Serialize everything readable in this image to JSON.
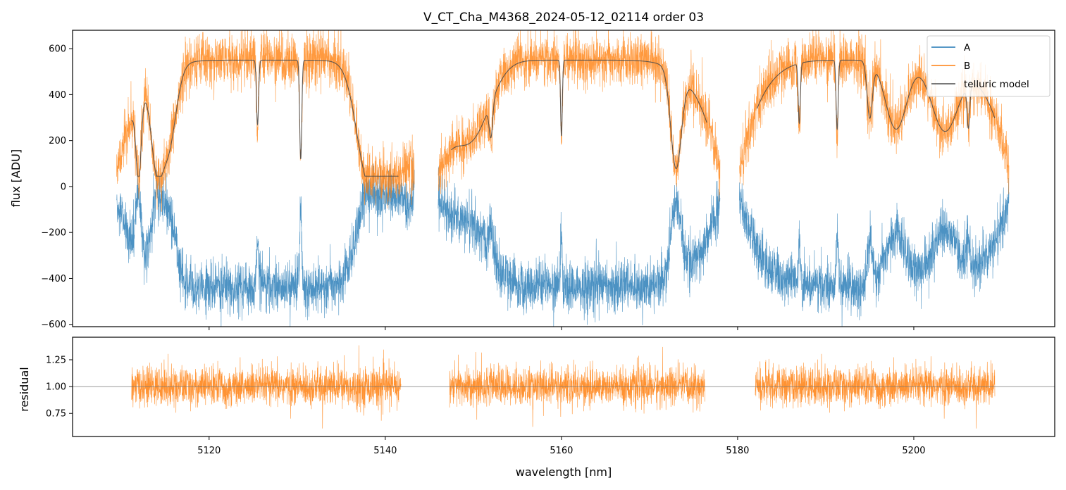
{
  "chart_data": [
    {
      "type": "line",
      "title": "V_CT_Cha_M4368_2024-05-12_02114  order 03",
      "xlabel": "",
      "ylabel": "flux [ADU]",
      "xlim": [
        5104.5,
        5216
      ],
      "ylim": [
        -610,
        680
      ],
      "yticks": [
        -600,
        -400,
        -200,
        0,
        200,
        400,
        600
      ],
      "ytick_labels": [
        "−600",
        "−400",
        "−200",
        "0",
        "200",
        "400",
        "600"
      ],
      "xticks": [
        5120,
        5140,
        5160,
        5180,
        5200
      ],
      "legend": {
        "placement": "top-right",
        "entries": [
          "A",
          "B",
          "telluric model"
        ]
      },
      "segments": [
        [
          5109.5,
          5143.3
        ],
        [
          5146.0,
          5178.0
        ],
        [
          5180.2,
          5210.8
        ]
      ],
      "series": [
        {
          "name": "A",
          "color": "#1f77b4",
          "description": "Nod position A: continuum near -420 ADU inside telluric-free windows, rising to ~-50 ADU in deep absorption bands",
          "continuum": -420,
          "noise": 55
        },
        {
          "name": "B",
          "color": "#ff7f0e",
          "description": "Nod position B: mirror of A, continuum near +540 ADU",
          "noise": 55
        },
        {
          "name": "telluric model",
          "color": "#4d4d4d",
          "model_segments": [
            [
              5111.2,
              5141.5
            ],
            [
              5147.5,
              5176.5
            ],
            [
              5182.2,
              5209.2
            ]
          ],
          "bands": [
            {
              "center": 5112.0,
              "depth": 340,
              "width": 0.28
            },
            {
              "center": 5114.0,
              "depth": 300,
              "width": 0.6
            },
            {
              "center": 5115.3,
              "depth": 360,
              "width": 0.9
            },
            {
              "center": 5125.5,
              "depth": 280,
              "width": 0.12
            },
            {
              "center": 5130.4,
              "depth": 430,
              "width": 0.12
            },
            {
              "center": 5138.0,
              "depth": 450,
              "width": 1.3
            },
            {
              "center": 5140.5,
              "depth": 380,
              "width": 1.2
            },
            {
              "center": 5150.0,
              "depth": 260,
              "width": 2.0
            },
            {
              "center": 5152.0,
              "depth": 150,
              "width": 0.2
            },
            {
              "center": 5160.0,
              "depth": 330,
              "width": 0.1
            },
            {
              "center": 5173.0,
              "depth": 420,
              "width": 0.6
            },
            {
              "center": 5187.0,
              "depth": 260,
              "width": 0.12
            },
            {
              "center": 5191.3,
              "depth": 300,
              "width": 0.12
            },
            {
              "center": 5195.0,
              "depth": 240,
              "width": 0.3
            },
            {
              "center": 5198.0,
              "depth": 300,
              "width": 1.2
            },
            {
              "center": 5203.5,
              "depth": 300,
              "width": 1.5
            },
            {
              "center": 5206.2,
              "depth": 180,
              "width": 0.15
            }
          ]
        }
      ]
    },
    {
      "type": "line",
      "title": "",
      "xlabel": "wavelength [nm]",
      "ylabel": "residual",
      "xlim": [
        5104.5,
        5216
      ],
      "ylim": [
        0.535,
        1.46
      ],
      "yticks": [
        0.75,
        1.0,
        1.25
      ],
      "ytick_labels": [
        "0.75",
        "1.00",
        "1.25"
      ],
      "xticks": [
        5120,
        5140,
        5160,
        5180,
        5200
      ],
      "xtick_labels": [
        "5120",
        "5140",
        "5160",
        "5180",
        "5200"
      ],
      "reference_line": 1.0,
      "series": [
        {
          "name": "B residual",
          "color": "#ff7f0e",
          "segments": [
            [
              5111.2,
              5141.8
            ],
            [
              5147.3,
              5176.3
            ],
            [
              5182.0,
              5209.2
            ]
          ],
          "mean": 1.0,
          "noise": 0.09
        }
      ]
    }
  ]
}
